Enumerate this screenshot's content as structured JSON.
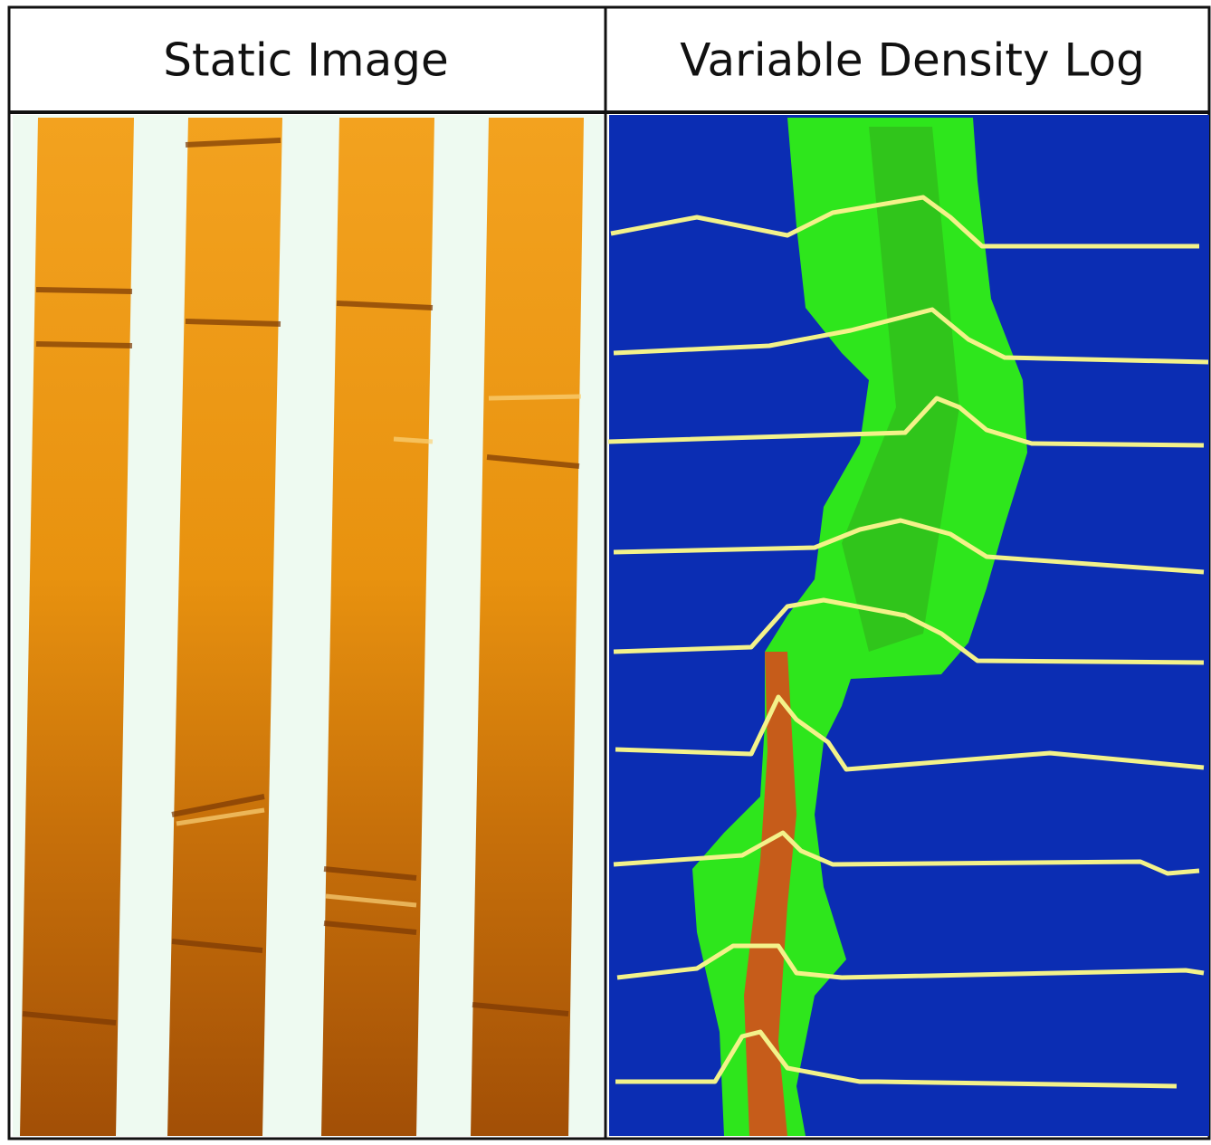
{
  "header": {
    "left_title": "Static Image",
    "right_title": "Variable Density Log"
  }
}
